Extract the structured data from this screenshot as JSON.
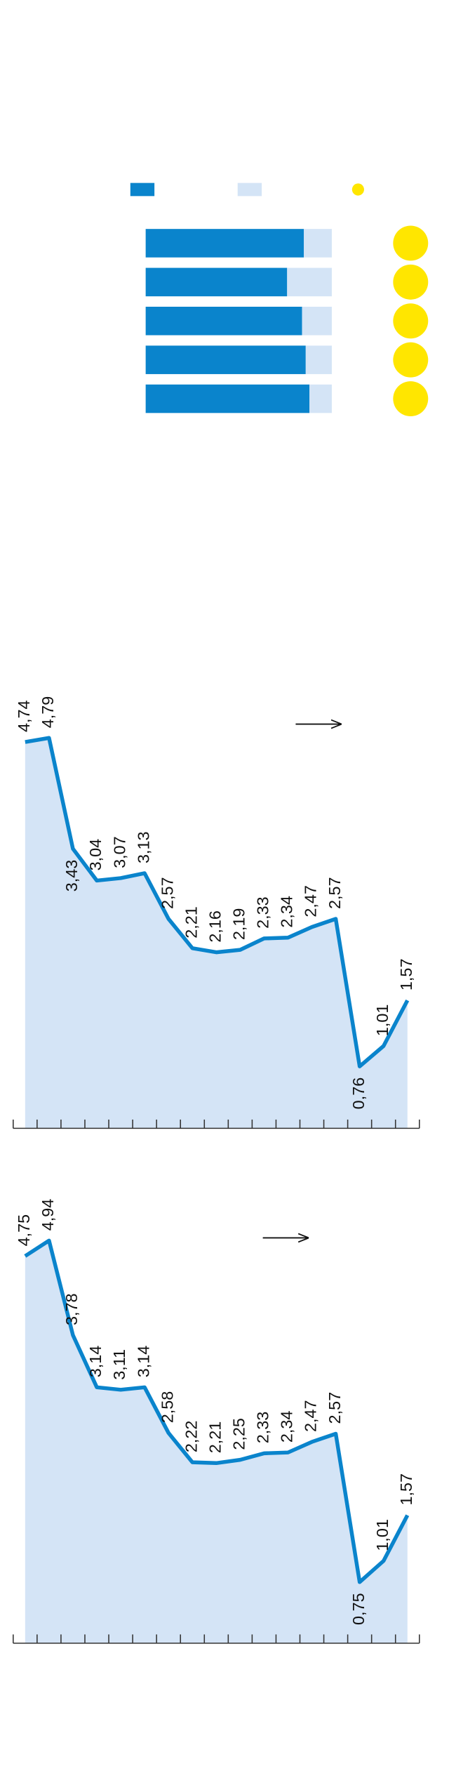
{
  "chart_data": [
    {
      "type": "bar",
      "orientation": "horizontal",
      "stacked": true,
      "categories": [
        null,
        null,
        null,
        null,
        null
      ],
      "series": [
        {
          "color": "#0a84cc",
          "values": [
            85,
            76,
            84,
            86,
            88
          ]
        },
        {
          "color": "#d4e4f6",
          "values": [
            15,
            24,
            16,
            14,
            12
          ]
        }
      ],
      "marker_color": "#ffe600",
      "xlim": [
        0,
        100
      ]
    },
    {
      "type": "area",
      "categories": [
        null,
        null,
        null,
        null,
        null,
        null,
        null,
        null,
        null,
        null,
        null,
        null,
        null,
        null,
        null,
        null,
        null
      ],
      "values": [
        4.74,
        4.79,
        3.43,
        3.04,
        3.07,
        3.13,
        2.57,
        2.21,
        2.16,
        2.19,
        2.33,
        2.34,
        2.47,
        2.57,
        0.76,
        1.01,
        1.57
      ],
      "value_labels": [
        "4,74",
        "4,79",
        "3,43",
        "3,04",
        "3,07",
        "3,13",
        "2,57",
        "2,21",
        "2,16",
        "2,19",
        "2,33",
        "2,34",
        "2,47",
        "2,57",
        "0,76",
        "1,01",
        "1,57"
      ],
      "color": "#0a84cc",
      "area_color": "#d4e4f6",
      "ylim": [
        0,
        5
      ]
    },
    {
      "type": "area",
      "categories": [
        null,
        null,
        null,
        null,
        null,
        null,
        null,
        null,
        null,
        null,
        null,
        null,
        null,
        null,
        null,
        null,
        null
      ],
      "values": [
        4.75,
        4.94,
        3.78,
        3.14,
        3.11,
        3.14,
        2.58,
        2.22,
        2.21,
        2.25,
        2.33,
        2.34,
        2.47,
        2.57,
        0.75,
        1.01,
        1.57
      ],
      "value_labels": [
        "4,75",
        "4,94",
        "3,78",
        "3,14",
        "3,11",
        "3,14",
        "2,58",
        "2,22",
        "2,21",
        "2,25",
        "2,33",
        "2,34",
        "2,47",
        "2,57",
        "0,75",
        "1,01",
        "1,57"
      ],
      "color": "#0a84cc",
      "area_color": "#d4e4f6",
      "ylim": [
        0,
        5
      ]
    }
  ]
}
